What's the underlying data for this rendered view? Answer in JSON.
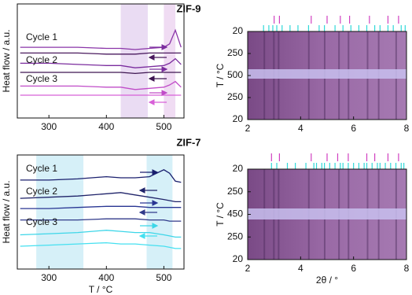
{
  "chart_data": [
    {
      "type": "line",
      "ylabel": "Heat flow / a.u.",
      "x": [
        250,
        300,
        350,
        400,
        425,
        450,
        475,
        500,
        510,
        520,
        530
      ],
      "xlim": [
        245,
        535
      ],
      "xticks": [
        300,
        400,
        500
      ],
      "ylim": [
        0,
        100
      ],
      "bands": [
        {
          "range": [
            425,
            472
          ],
          "color": "#eadcf3"
        },
        {
          "range": [
            500,
            520
          ],
          "color": "#f0dcf3"
        }
      ],
      "annotations": [
        "Cycle 1",
        "Cycle 2",
        "Cycle 3"
      ],
      "series": [
        {
          "color": "#8a35a8",
          "values": [
            62,
            62,
            62,
            61,
            61,
            60,
            61,
            62,
            65,
            77,
            62
          ]
        },
        {
          "color": "#4a1a5e",
          "values": [
            57,
            57,
            57,
            56,
            56,
            56,
            57,
            57,
            57,
            57,
            57
          ]
        },
        {
          "color": "#7b2d9e",
          "values": [
            48,
            48,
            47,
            46,
            46,
            44,
            45,
            46,
            48,
            52,
            47
          ]
        },
        {
          "color": "#3d1550",
          "values": [
            40,
            40,
            40,
            40,
            40,
            39,
            40,
            40,
            40,
            40,
            40
          ]
        },
        {
          "color": "#c04cc8",
          "values": [
            28,
            28,
            28,
            27,
            27,
            25,
            26,
            27,
            29,
            32,
            27
          ]
        },
        {
          "color": "#d860d8",
          "values": [
            20,
            20,
            20,
            20,
            20,
            20,
            20,
            20,
            20,
            20,
            20
          ]
        }
      ]
    },
    {
      "type": "heatmap",
      "title": "ZIF-9",
      "ylabel": "T / °C",
      "xlim": [
        2,
        8
      ],
      "xticks": [
        2,
        4,
        6,
        8
      ],
      "ylim": [
        0,
        4
      ],
      "yticks": [
        {
          "value": 4,
          "label": "20"
        },
        {
          "value": 3,
          "label": "250"
        },
        {
          "value": 2,
          "label": "500"
        },
        {
          "value": 1,
          "label": "250"
        },
        {
          "value": 0,
          "label": "20"
        }
      ],
      "reference_peaks": [
        {
          "color": "#d040c0",
          "x": [
            3.0,
            3.2,
            4.4,
            5.0,
            5.5,
            5.85,
            6.6,
            7.3,
            7.7
          ]
        },
        {
          "color": "#30d8d8",
          "x": [
            2.6,
            2.8,
            2.95,
            3.1,
            3.3,
            3.6,
            3.9,
            4.3,
            4.7,
            4.9,
            5.3,
            5.6,
            5.9,
            6.2,
            6.5,
            6.8,
            7.0,
            7.3,
            7.5,
            7.8,
            7.95
          ]
        }
      ]
    },
    {
      "type": "line",
      "ylabel": "Heat flow / a.u.",
      "xlabel": "T / °C",
      "x": [
        250,
        300,
        350,
        400,
        425,
        450,
        475,
        500,
        510,
        520,
        530
      ],
      "xlim": [
        245,
        535
      ],
      "xticks": [
        300,
        400,
        500
      ],
      "ylim": [
        0,
        100
      ],
      "bands": [
        {
          "range": [
            278,
            360
          ],
          "color": "#d6f0f8"
        },
        {
          "range": [
            470,
            515
          ],
          "color": "#d6f0f8"
        }
      ],
      "annotations": [
        "Cycle 1",
        "Cycle 2",
        "Cycle 3"
      ],
      "series": [
        {
          "color": "#1a1f6e",
          "values": [
            78,
            78,
            79,
            81,
            80,
            80,
            81,
            87,
            84,
            77,
            76
          ]
        },
        {
          "color": "#20246a",
          "values": [
            62,
            63,
            64,
            66,
            67,
            65,
            63,
            61,
            60,
            59,
            59
          ]
        },
        {
          "color": "#283593",
          "values": [
            53,
            53,
            54,
            55,
            55,
            55,
            54,
            54,
            54,
            54,
            54
          ]
        },
        {
          "color": "#303a8a",
          "values": [
            43,
            43,
            43,
            44,
            44,
            44,
            43,
            43,
            42,
            42,
            42
          ]
        },
        {
          "color": "#3dd6e8",
          "values": [
            30,
            31,
            32,
            34,
            33,
            32,
            32,
            30,
            29,
            28,
            28
          ]
        },
        {
          "color": "#45e0f0",
          "values": [
            20,
            21,
            22,
            23,
            22,
            22,
            21,
            20,
            19,
            18,
            18
          ]
        }
      ]
    },
    {
      "type": "heatmap",
      "title": "ZIF-7",
      "ylabel": "T / °C",
      "xlabel": "2θ / °",
      "xlim": [
        2,
        8
      ],
      "xticks": [
        2,
        4,
        6,
        8
      ],
      "ylim": [
        0,
        4
      ],
      "yticks": [
        {
          "value": 4,
          "label": "20"
        },
        {
          "value": 3,
          "label": "250"
        },
        {
          "value": 2,
          "label": "450"
        },
        {
          "value": 1,
          "label": "250"
        },
        {
          "value": 0,
          "label": "20"
        }
      ],
      "reference_peaks": [
        {
          "color": "#d040c0",
          "x": [
            2.9,
            3.2,
            4.4,
            5.0,
            5.4,
            5.8,
            6.5,
            6.8,
            7.3,
            7.7
          ]
        },
        {
          "color": "#30d8d8",
          "x": [
            2.9,
            3.1,
            3.5,
            3.8,
            4.2,
            4.5,
            4.6,
            4.8,
            4.9,
            5.1,
            5.3,
            5.5,
            5.6,
            5.8,
            6.0,
            6.2,
            6.4,
            6.5,
            6.7,
            6.9,
            7.0,
            7.2,
            7.4,
            7.6,
            7.8,
            7.9
          ]
        }
      ]
    }
  ]
}
